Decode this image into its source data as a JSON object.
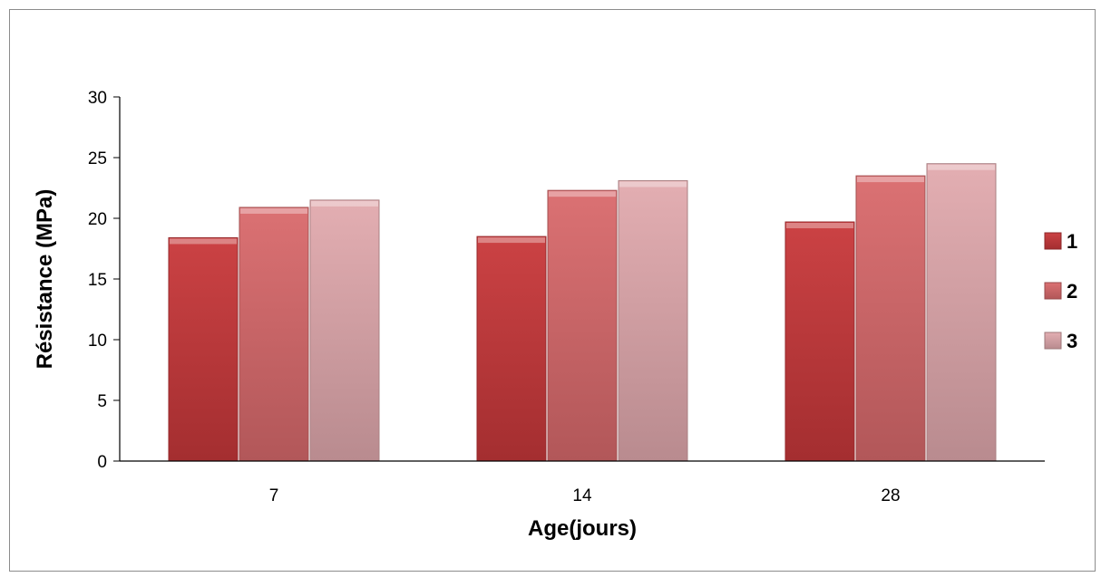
{
  "chart_data": {
    "type": "bar",
    "categories": [
      "7",
      "14",
      "28"
    ],
    "series": [
      {
        "name": "1",
        "values": [
          18.4,
          18.5,
          19.7
        ],
        "color": "#c8383a"
      },
      {
        "name": "2",
        "values": [
          20.9,
          22.3,
          23.5
        ],
        "color": "#d96a6c"
      },
      {
        "name": "3",
        "values": [
          21.5,
          23.1,
          24.5
        ],
        "color": "#e2aaae"
      }
    ],
    "xlabel": "Age(jours)",
    "ylabel": "Résistance (MPa)",
    "ylim": [
      0,
      30
    ],
    "yticks": [
      "0",
      "5",
      "10",
      "15",
      "20",
      "25",
      "30"
    ],
    "grid": false,
    "legend_position": "right"
  }
}
